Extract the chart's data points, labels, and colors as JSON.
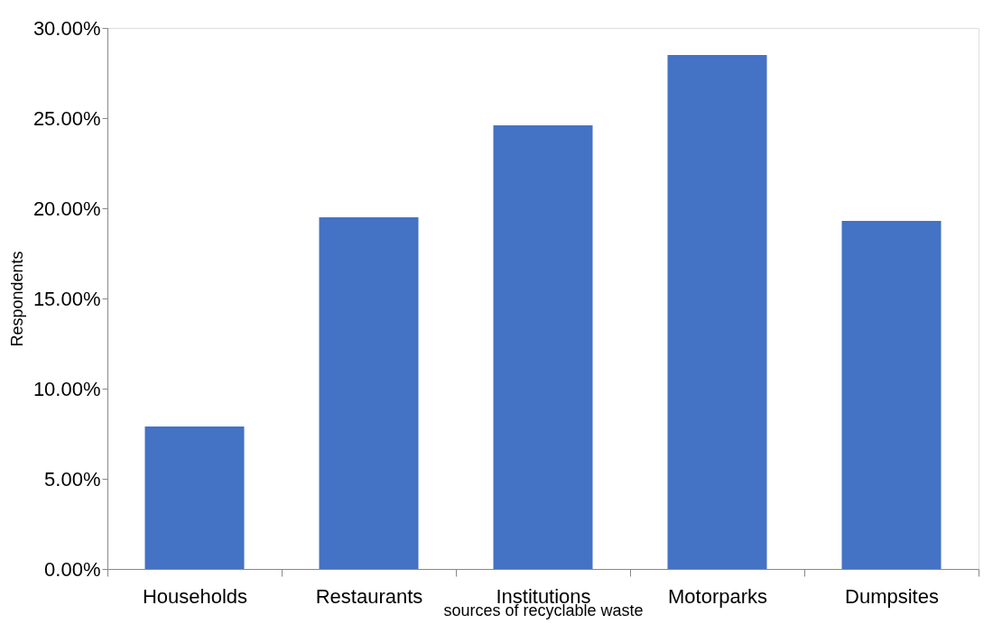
{
  "chart_data": {
    "type": "bar",
    "xlabel": "sources of recyclable waste",
    "ylabel": "Respondents",
    "categories": [
      "Households",
      "Restaurants",
      "Institutions",
      "Motorparks",
      "Dumpsites"
    ],
    "values": [
      7.9,
      19.5,
      24.6,
      28.5,
      19.3
    ],
    "color": "#4472c4",
    "ylim": [
      0,
      30
    ],
    "yticks": [
      {
        "value": 0,
        "label": "0.00%"
      },
      {
        "value": 5,
        "label": "5.00%"
      },
      {
        "value": 10,
        "label": "10.00%"
      },
      {
        "value": 15,
        "label": "15.00%"
      },
      {
        "value": 20,
        "label": "20.00%"
      },
      {
        "value": 25,
        "label": "25.00%"
      },
      {
        "value": 30,
        "label": "30.00%"
      }
    ],
    "grid": false
  }
}
